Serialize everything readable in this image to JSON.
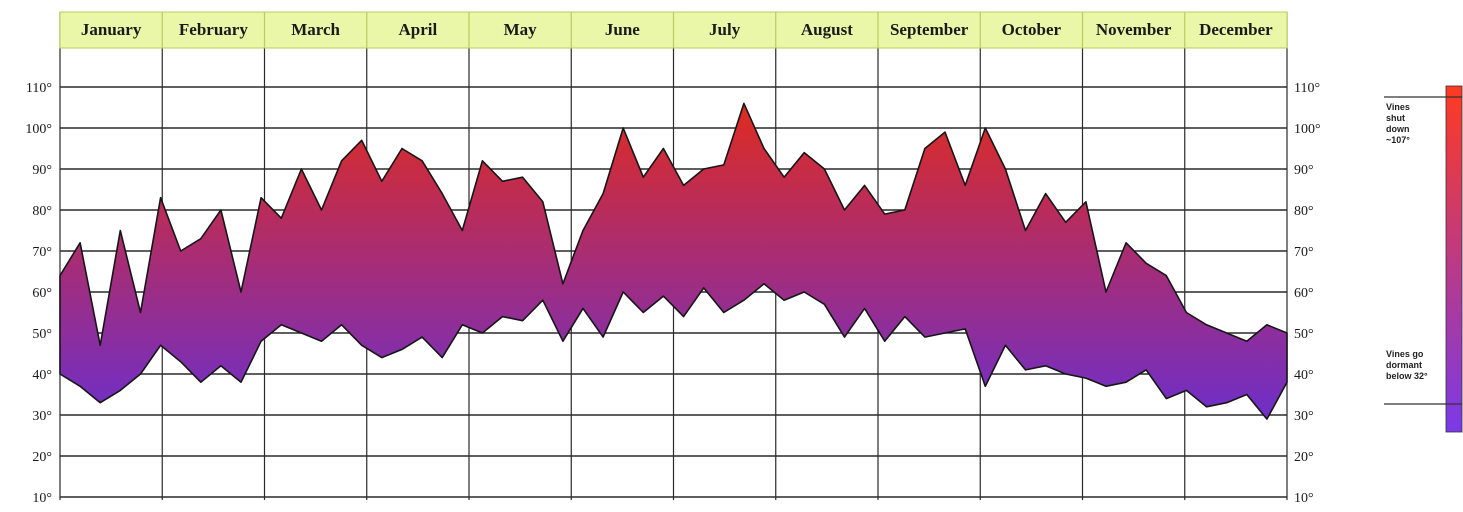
{
  "chart_data": {
    "type": "area",
    "title": "",
    "xlabel": "",
    "ylabel": "",
    "categories": [
      "January",
      "February",
      "March",
      "April",
      "May",
      "June",
      "July",
      "August",
      "September",
      "October",
      "November",
      "December"
    ],
    "ylim": [
      10,
      120
    ],
    "y_ticks": [
      "10°",
      "20°",
      "30°",
      "40°",
      "50°",
      "60°",
      "70°",
      "80°",
      "90°",
      "100°",
      "110°"
    ],
    "grid": true,
    "series": [
      {
        "values_high": [
          64,
          72,
          47,
          75,
          55,
          83,
          70,
          73,
          80,
          60,
          83,
          78,
          90,
          80,
          92,
          97,
          87,
          95,
          92,
          84,
          75,
          92,
          87,
          88,
          82,
          62,
          75,
          84,
          100,
          88,
          95,
          86,
          90,
          91,
          106,
          95,
          88,
          94,
          90,
          80,
          86,
          79,
          80,
          95,
          99,
          86,
          100,
          90,
          75,
          84,
          77,
          82,
          60,
          72,
          67,
          64,
          55,
          52,
          50,
          48,
          52,
          50
        ]
      },
      {
        "values_low": [
          40,
          37,
          33,
          36,
          40,
          47,
          43,
          38,
          42,
          38,
          48,
          52,
          50,
          48,
          52,
          47,
          44,
          46,
          49,
          44,
          52,
          50,
          54,
          53,
          58,
          48,
          56,
          49,
          60,
          55,
          59,
          54,
          61,
          55,
          58,
          62,
          58,
          60,
          57,
          49,
          56,
          48,
          54,
          49,
          50,
          51,
          37,
          47,
          41,
          42,
          40,
          39,
          37,
          38,
          41,
          34,
          36,
          32,
          33,
          35,
          29,
          38
        ]
      }
    ],
    "annotations": [
      {
        "text": [
          "Vines",
          "shut",
          "down",
          "~107°"
        ],
        "value": 107
      },
      {
        "text": [
          "Vines go",
          "dormant",
          "below 32°"
        ],
        "value": 32
      }
    ],
    "colors": {
      "header_fill": "#eaf7a8",
      "header_border": "#b8cc60",
      "grid": "#2a2a2a",
      "area_top": "#e02b1f",
      "area_bottom": "#6a2fd0",
      "area_stroke": "#161616",
      "scale_bar_top": "#ff3a20",
      "scale_bar_bottom": "#7a3ae8"
    }
  }
}
